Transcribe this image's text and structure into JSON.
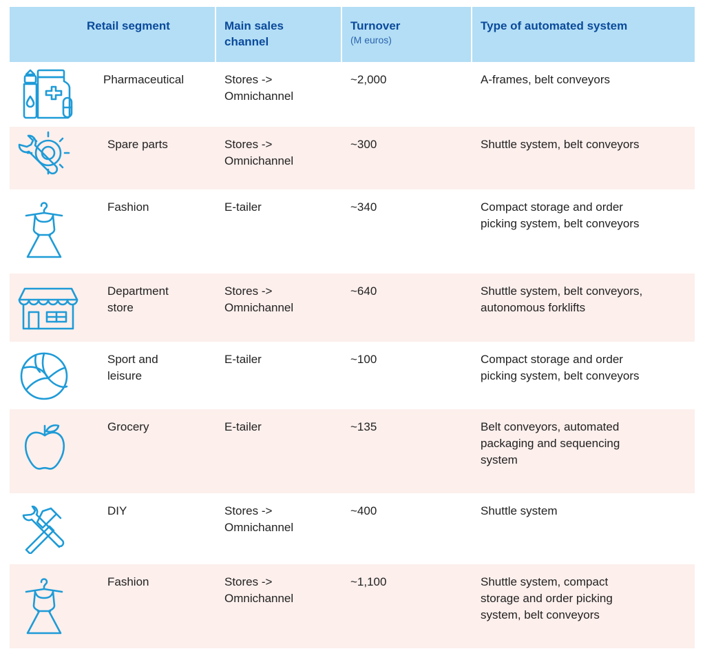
{
  "header": {
    "col1": "Retail segment",
    "col2_line1": "Main sales",
    "col2_line2": "channel",
    "col3": "Turnover",
    "col3_sub": "(M euros)",
    "col4": "Type of automated system"
  },
  "rows": [
    {
      "icon": "pharmacy-icon",
      "segment": "Pharmaceutical",
      "channel": "Stores ->\nOmnichannel",
      "turnover": "~2,000",
      "system": "A-frames, belt conveyors"
    },
    {
      "icon": "wrench-gear-icon",
      "segment": "Spare parts",
      "channel": "Stores ->\nOmnichannel",
      "turnover": "~300",
      "system": "Shuttle system, belt conveyors"
    },
    {
      "icon": "dress-icon",
      "segment": "Fashion",
      "channel": "E-tailer",
      "turnover": "~340",
      "system": "Compact storage and order\npicking system, belt conveyors"
    },
    {
      "icon": "storefront-icon",
      "segment": "Department\nstore",
      "channel": "Stores ->\nOmnichannel",
      "turnover": "~640",
      "system": "Shuttle system, belt conveyors,\nautonomous forklifts"
    },
    {
      "icon": "ball-icon",
      "segment": "Sport and\nleisure",
      "channel": "E-tailer",
      "turnover": "~100",
      "system": "Compact storage and order\npicking system, belt conveyors"
    },
    {
      "icon": "apple-icon",
      "segment": "Grocery",
      "channel": "E-tailer",
      "turnover": "~135",
      "system": "Belt conveyors, automated\npackaging and sequencing\nsystem"
    },
    {
      "icon": "tools-icon",
      "segment": "DIY",
      "channel": "Stores ->\nOmnichannel",
      "turnover": "~400",
      "system": "Shuttle system"
    },
    {
      "icon": "dress-icon",
      "segment": "Fashion",
      "channel": "Stores ->\nOmnichannel",
      "turnover": "~1,100",
      "system": "Shuttle system, compact\nstorage and order picking\nsystem, belt conveyors"
    }
  ],
  "colors": {
    "header_bg": "#b3def5",
    "header_text": "#0b4a9b",
    "stripe": "#fcefec",
    "icon": "#1e9bd7"
  }
}
